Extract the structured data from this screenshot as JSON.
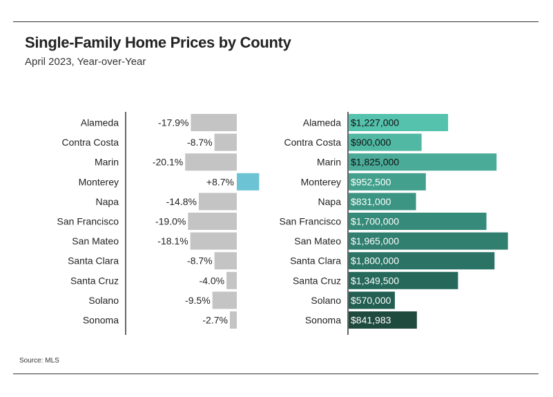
{
  "title": "Single-Family Home Prices by County",
  "subtitle": "April 2023, Year-over-Year",
  "source": "Source: MLS",
  "colors": {
    "negative": "#c4c4c4",
    "positive": "#6cc3d3",
    "axis": "#333333",
    "price_gradient": [
      "#55c2ad",
      "#1f4a3e"
    ]
  },
  "chart_data": [
    {
      "type": "bar",
      "orientation": "horizontal",
      "categories": [
        "Alameda",
        "Contra Costa",
        "Marin",
        "Monterey",
        "Napa",
        "San Francisco",
        "San Mateo",
        "Santa Clara",
        "Santa Cruz",
        "Solano",
        "Sonoma"
      ],
      "values": [
        -17.9,
        -8.7,
        -20.1,
        8.7,
        -14.8,
        -19.0,
        -18.1,
        -8.7,
        -4.0,
        -9.5,
        -2.7
      ],
      "data_labels": [
        "-17.9%",
        "-8.7%",
        "-20.1%",
        "+8.7%",
        "-14.8%",
        "-19.0%",
        "-18.1%",
        "-8.7%",
        "-4.0%",
        "-9.5%",
        "-2.7%"
      ],
      "unit": "%",
      "grid": false
    },
    {
      "type": "bar",
      "orientation": "horizontal",
      "categories": [
        "Alameda",
        "Contra Costa",
        "Marin",
        "Monterey",
        "Napa",
        "San Francisco",
        "San Mateo",
        "Santa Clara",
        "Santa Cruz",
        "Solano",
        "Sonoma"
      ],
      "values": [
        1227000,
        900000,
        1825000,
        952500,
        831000,
        1700000,
        1965000,
        1800000,
        1349500,
        570000,
        841983
      ],
      "data_labels": [
        "$1,227,000",
        "$900,000",
        "$1,825,000",
        "$952,500",
        "$831,000",
        "$1,700,000",
        "$1,965,000",
        "$1,800,000",
        "$1,349,500",
        "$570,000",
        "$841,983"
      ],
      "colors": [
        "#55c2ad",
        "#50b8a3",
        "#49ab98",
        "#42a08d",
        "#3c9583",
        "#368a79",
        "#307f6f",
        "#2b7465",
        "#26695b",
        "#225e52",
        "#1f4a3e"
      ],
      "value_label_colors": [
        "#111111",
        "#111111",
        "#111111",
        "#ffffff",
        "#ffffff",
        "#ffffff",
        "#ffffff",
        "#ffffff",
        "#ffffff",
        "#ffffff",
        "#ffffff"
      ],
      "grid": false
    }
  ]
}
